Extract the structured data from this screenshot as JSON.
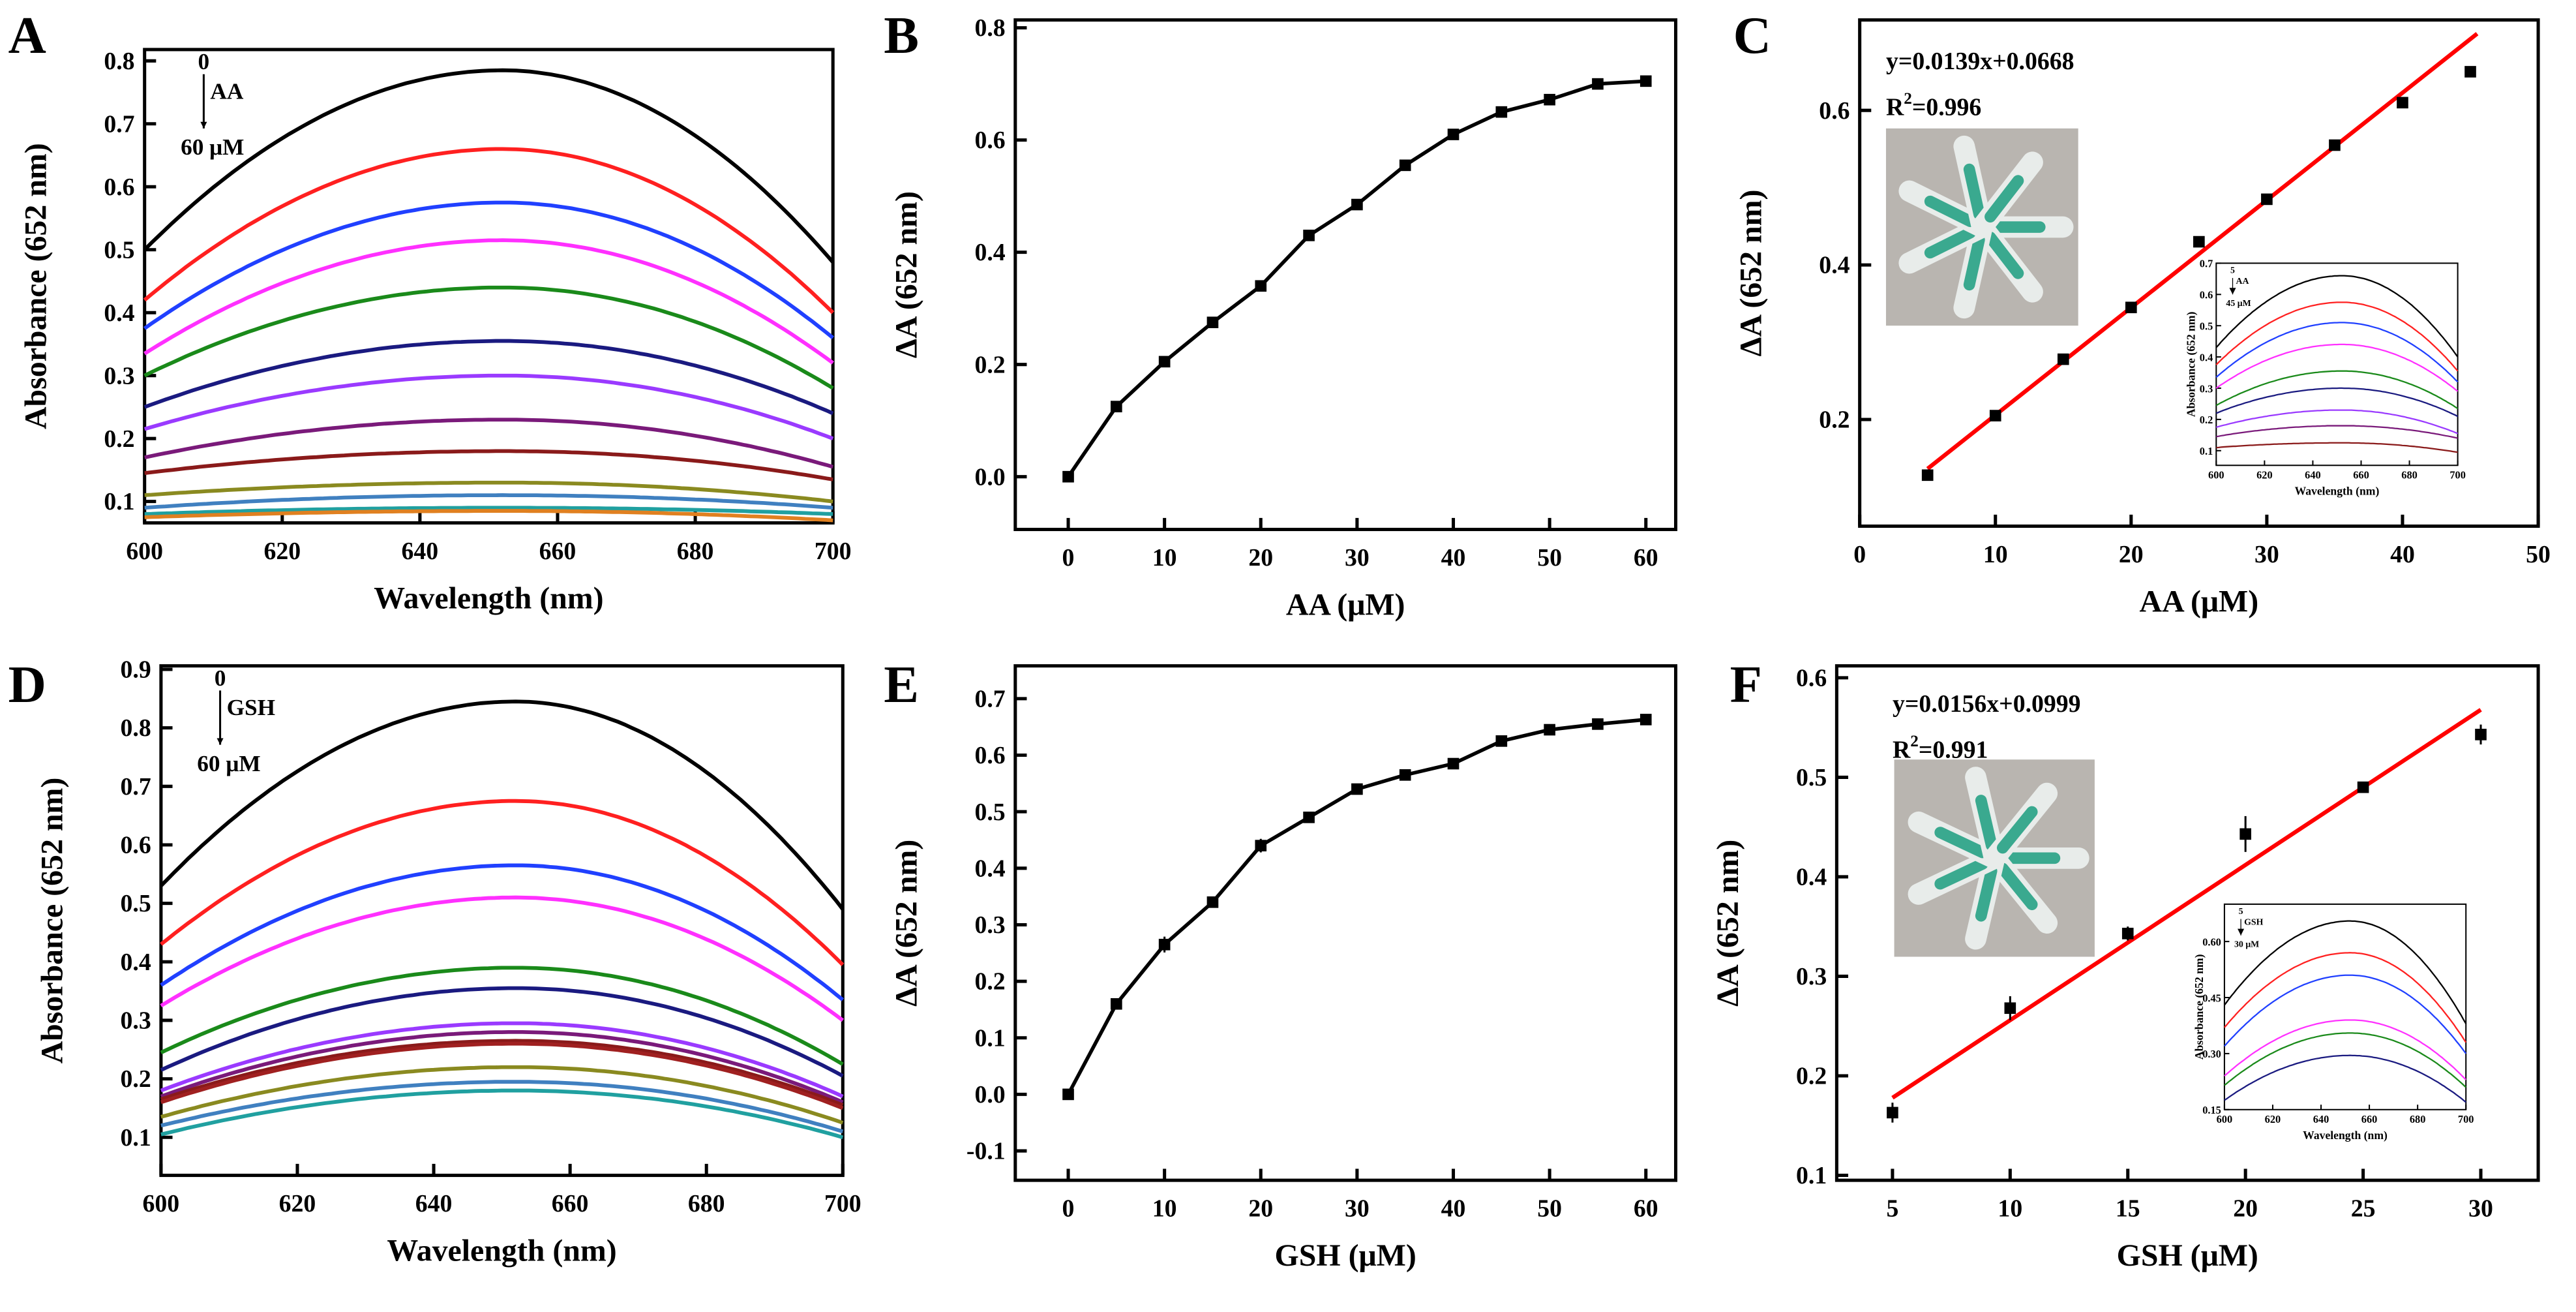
{
  "panels": [
    {
      "id": "A",
      "letter": "A",
      "type": "line",
      "xlabel": "Wavelength (nm)",
      "ylabel": "Absorbance (652 nm)",
      "xlim": [
        600,
        700
      ],
      "ylim": [
        0.066,
        0.818
      ],
      "xticks": [
        "600",
        "620",
        "640",
        "660",
        "680",
        "700"
      ],
      "yticks": [
        "0.1",
        "0.2",
        "0.3",
        "0.4",
        "0.5",
        "0.6",
        "0.7",
        "0.8"
      ],
      "annotation": {
        "top": "0",
        "analyte": "AA",
        "bottom": "60 μM"
      },
      "curve_peak_x": 652,
      "series": [
        {
          "color": "#000000",
          "y600": 0.5,
          "peak": 0.785,
          "y700": 0.48
        },
        {
          "color": "#ff2020",
          "y600": 0.42,
          "peak": 0.66,
          "y700": 0.4
        },
        {
          "color": "#2040ff",
          "y600": 0.375,
          "peak": 0.575,
          "y700": 0.36
        },
        {
          "color": "#ff30ff",
          "y600": 0.335,
          "peak": 0.515,
          "y700": 0.32
        },
        {
          "color": "#1a8a1a",
          "y600": 0.3,
          "peak": 0.44,
          "y700": 0.28
        },
        {
          "color": "#1a1a80",
          "y600": 0.25,
          "peak": 0.355,
          "y700": 0.24
        },
        {
          "color": "#9a3aff",
          "y600": 0.215,
          "peak": 0.3,
          "y700": 0.2
        },
        {
          "color": "#7a1a7a",
          "y600": 0.17,
          "peak": 0.23,
          "y700": 0.155
        },
        {
          "color": "#8a1a1a",
          "y600": 0.145,
          "peak": 0.18,
          "y700": 0.135
        },
        {
          "color": "#8a8a20",
          "y600": 0.11,
          "peak": 0.13,
          "y700": 0.1
        },
        {
          "color": "#4080c0",
          "y600": 0.09,
          "peak": 0.11,
          "y700": 0.09
        },
        {
          "color": "#20a0a0",
          "y600": 0.08,
          "peak": 0.09,
          "y700": 0.08
        },
        {
          "color": "#e08020",
          "y600": 0.075,
          "peak": 0.085,
          "y700": 0.07
        }
      ]
    },
    {
      "id": "B",
      "letter": "B",
      "type": "scatter-line",
      "xlabel": "AA (μM)",
      "ylabel": "ΔA (652 nm)",
      "xlim": [
        -5.5,
        63.1
      ],
      "ylim": [
        -0.094,
        0.814
      ],
      "xticks": [
        "0",
        "10",
        "20",
        "30",
        "40",
        "50",
        "60"
      ],
      "yticks": [
        "0.0",
        "0.2",
        "0.4",
        "0.6",
        "0.8"
      ],
      "x": [
        0,
        5,
        10,
        15,
        20,
        25,
        30,
        35,
        40,
        45,
        50,
        55,
        60
      ],
      "y": [
        0,
        0.125,
        0.205,
        0.275,
        0.34,
        0.43,
        0.485,
        0.555,
        0.61,
        0.65,
        0.672,
        0.7,
        0.705
      ],
      "err": [
        0.005,
        0.005,
        0.006,
        0.005,
        0.005,
        0.007,
        0.006,
        0.005,
        0.005,
        0.005,
        0.006,
        0.006,
        0.005
      ]
    },
    {
      "id": "C",
      "letter": "C",
      "type": "scatter-fit",
      "xlabel": "AA (μM)",
      "ylabel": "ΔA (652 nm)",
      "xlim": [
        0,
        50
      ],
      "ylim": [
        0.062,
        0.717
      ],
      "xticks": [
        "0",
        "10",
        "20",
        "30",
        "40",
        "50"
      ],
      "yticks": [
        "0.2",
        "0.4",
        "0.6"
      ],
      "x": [
        5,
        10,
        15,
        20,
        25,
        30,
        35,
        40,
        45
      ],
      "y": [
        0.128,
        0.205,
        0.278,
        0.345,
        0.43,
        0.485,
        0.555,
        0.61,
        0.65
      ],
      "err": [
        0.004,
        0.004,
        0.004,
        0.004,
        0.005,
        0.004,
        0.004,
        0.004,
        0.005
      ],
      "fit": {
        "slope": 0.0139,
        "intercept": 0.0668,
        "x_range": [
          5,
          45.5
        ],
        "color": "#ff0000"
      },
      "equation": "y=0.0139x+0.0668",
      "r2_prefix": "R",
      "r2_sup": "2",
      "r2_value": "=0.996",
      "inset": {
        "type": "line",
        "xlabel": "Wavelength (nm)",
        "ylabel": "Absorbance (652 nm)",
        "xlim": [
          600,
          700
        ],
        "ylim": [
          0.053,
          0.7
        ],
        "xticks": [
          "600",
          "620",
          "640",
          "660",
          "680",
          "700"
        ],
        "yticks": [
          "0.1",
          "0.2",
          "0.3",
          "0.4",
          "0.5",
          "0.6",
          "0.7"
        ],
        "annotation": {
          "top": "5",
          "analyte": "AA",
          "bottom": "45 μM"
        },
        "series": [
          {
            "color": "#000000",
            "y600": 0.43,
            "peak": 0.66,
            "y700": 0.4
          },
          {
            "color": "#ff2020",
            "y600": 0.375,
            "peak": 0.575,
            "y700": 0.355
          },
          {
            "color": "#2040ff",
            "y600": 0.335,
            "peak": 0.51,
            "y700": 0.32
          },
          {
            "color": "#ff30ff",
            "y600": 0.3,
            "peak": 0.44,
            "y700": 0.29
          },
          {
            "color": "#1a8a1a",
            "y600": 0.245,
            "peak": 0.355,
            "y700": 0.235
          },
          {
            "color": "#1a1a80",
            "y600": 0.22,
            "peak": 0.3,
            "y700": 0.21
          },
          {
            "color": "#9a3aff",
            "y600": 0.175,
            "peak": 0.23,
            "y700": 0.155
          },
          {
            "color": "#7a1a7a",
            "y600": 0.145,
            "peak": 0.18,
            "y700": 0.14
          },
          {
            "color": "#8a1a1a",
            "y600": 0.11,
            "peak": 0.125,
            "y700": 0.095
          }
        ]
      }
    },
    {
      "id": "D",
      "letter": "D",
      "type": "line",
      "xlabel": "Wavelength (nm)",
      "ylabel": "Absorbance (652 nm)",
      "xlim": [
        600,
        700
      ],
      "ylim": [
        0.035,
        0.906
      ],
      "xticks": [
        "600",
        "620",
        "640",
        "660",
        "680",
        "700"
      ],
      "yticks": [
        "0.1",
        "0.2",
        "0.3",
        "0.4",
        "0.5",
        "0.6",
        "0.7",
        "0.8",
        "0.9"
      ],
      "annotation": {
        "top": "0",
        "analyte": "GSH",
        "bottom": "60 μM"
      },
      "series": [
        {
          "color": "#000000",
          "y600": 0.53,
          "peak": 0.845,
          "y700": 0.49
        },
        {
          "color": "#ff2020",
          "y600": 0.43,
          "peak": 0.675,
          "y700": 0.395
        },
        {
          "color": "#2040ff",
          "y600": 0.36,
          "peak": 0.565,
          "y700": 0.335
        },
        {
          "color": "#ff30ff",
          "y600": 0.325,
          "peak": 0.51,
          "y700": 0.3
        },
        {
          "color": "#1a8a1a",
          "y600": 0.245,
          "peak": 0.39,
          "y700": 0.225
        },
        {
          "color": "#1a1a80",
          "y600": 0.215,
          "peak": 0.355,
          "y700": 0.205
        },
        {
          "color": "#9a3aff",
          "y600": 0.18,
          "peak": 0.295,
          "y700": 0.17
        },
        {
          "color": "#7a1a7a",
          "y600": 0.17,
          "peak": 0.28,
          "y700": 0.16
        },
        {
          "color": "#8a1a1a",
          "y600": 0.165,
          "peak": 0.265,
          "y700": 0.155
        },
        {
          "color": "#a02020",
          "y600": 0.16,
          "peak": 0.26,
          "y700": 0.15
        },
        {
          "color": "#8a8a20",
          "y600": 0.135,
          "peak": 0.22,
          "y700": 0.125
        },
        {
          "color": "#4080c0",
          "y600": 0.12,
          "peak": 0.195,
          "y700": 0.11
        },
        {
          "color": "#20a0a0",
          "y600": 0.105,
          "peak": 0.18,
          "y700": 0.1
        }
      ]
    },
    {
      "id": "E",
      "letter": "E",
      "type": "scatter-line",
      "xlabel": "GSH (μM)",
      "ylabel": "ΔA (652 nm)",
      "xlim": [
        -5.5,
        63.1
      ],
      "ylim": [
        -0.152,
        0.758
      ],
      "xticks": [
        "0",
        "10",
        "20",
        "30",
        "40",
        "50",
        "60"
      ],
      "yticks": [
        "-0.1",
        "0.0",
        "0.1",
        "0.2",
        "0.3",
        "0.4",
        "0.5",
        "0.6",
        "0.7"
      ],
      "x": [
        0,
        5,
        10,
        15,
        20,
        25,
        30,
        35,
        40,
        45,
        50,
        55,
        60
      ],
      "y": [
        0,
        0.16,
        0.265,
        0.34,
        0.44,
        0.49,
        0.54,
        0.565,
        0.585,
        0.625,
        0.645,
        0.655,
        0.663
      ],
      "err": [
        0.005,
        0.006,
        0.014,
        0.006,
        0.012,
        0.006,
        0.007,
        0.006,
        0.006,
        0.005,
        0.006,
        0.005,
        0.005
      ]
    },
    {
      "id": "F",
      "letter": "F",
      "type": "scatter-fit",
      "xlabel": "GSH (μM)",
      "ylabel": "ΔA (652 nm)",
      "xlim": [
        2.63,
        32.44
      ],
      "ylim": [
        0.095,
        0.612
      ],
      "xticks": [
        "5",
        "10",
        "15",
        "20",
        "25",
        "30"
      ],
      "yticks": [
        "0.1",
        "0.2",
        "0.3",
        "0.4",
        "0.5",
        "0.6"
      ],
      "x": [
        5,
        10,
        15,
        20,
        25,
        30
      ],
      "y": [
        0.163,
        0.268,
        0.343,
        0.443,
        0.49,
        0.543
      ],
      "err": [
        0.01,
        0.012,
        0.007,
        0.018,
        0.005,
        0.01
      ],
      "fit": {
        "slope": 0.0156,
        "intercept": 0.0999,
        "x_range": [
          5,
          30
        ],
        "color": "#ff0000"
      },
      "equation": "y=0.0156x+0.0999",
      "r2_prefix": "R",
      "r2_sup": "2",
      "r2_value": "=0.991",
      "inset": {
        "type": "line",
        "xlabel": "Wavelength (nm)",
        "ylabel": "Absorbance (652 nm)",
        "xlim": [
          600,
          700
        ],
        "ylim": [
          0.15,
          0.7
        ],
        "xticks": [
          "600",
          "620",
          "640",
          "660",
          "680",
          "700"
        ],
        "yticks": [
          "0.15",
          "0.30",
          "0.45",
          "0.60"
        ],
        "annotation": {
          "top": "5",
          "analyte": "GSH",
          "bottom": "30 μM"
        },
        "series": [
          {
            "color": "#000000",
            "y600": 0.43,
            "peak": 0.655,
            "y700": 0.38
          },
          {
            "color": "#ff2020",
            "y600": 0.37,
            "peak": 0.57,
            "y700": 0.33
          },
          {
            "color": "#2040ff",
            "y600": 0.32,
            "peak": 0.51,
            "y700": 0.3
          },
          {
            "color": "#ff30ff",
            "y600": 0.24,
            "peak": 0.39,
            "y700": 0.23
          },
          {
            "color": "#1a8a1a",
            "y600": 0.215,
            "peak": 0.355,
            "y700": 0.21
          },
          {
            "color": "#1a1a80",
            "y600": 0.175,
            "peak": 0.295,
            "y700": 0.17
          }
        ]
      }
    }
  ],
  "chart_data": [
    {
      "type": "line",
      "title": "A",
      "xlabel": "Wavelength (nm)",
      "ylabel": "Absorbance (652 nm)",
      "note": "AA 0 to 60 μM, 13 spectra"
    },
    {
      "type": "line",
      "title": "B",
      "xlabel": "AA (μM)",
      "ylabel": "ΔA (652 nm)",
      "x": [
        0,
        5,
        10,
        15,
        20,
        25,
        30,
        35,
        40,
        45,
        50,
        55,
        60
      ],
      "y": [
        0,
        0.125,
        0.205,
        0.275,
        0.34,
        0.43,
        0.485,
        0.555,
        0.61,
        0.65,
        0.672,
        0.7,
        0.705
      ]
    },
    {
      "type": "scatter",
      "title": "C",
      "xlabel": "AA (μM)",
      "ylabel": "ΔA (652 nm)",
      "x": [
        5,
        10,
        15,
        20,
        25,
        30,
        35,
        40,
        45
      ],
      "y": [
        0.128,
        0.205,
        0.278,
        0.345,
        0.43,
        0.485,
        0.555,
        0.61,
        0.65
      ],
      "fit": "y=0.0139x+0.0668",
      "r2": 0.996
    },
    {
      "type": "line",
      "title": "D",
      "xlabel": "Wavelength (nm)",
      "ylabel": "Absorbance (652 nm)",
      "note": "GSH 0 to 60 μM, 13 spectra"
    },
    {
      "type": "line",
      "title": "E",
      "xlabel": "GSH (μM)",
      "ylabel": "ΔA (652 nm)",
      "x": [
        0,
        5,
        10,
        15,
        20,
        25,
        30,
        35,
        40,
        45,
        50,
        55,
        60
      ],
      "y": [
        0,
        0.16,
        0.265,
        0.34,
        0.44,
        0.49,
        0.54,
        0.565,
        0.585,
        0.625,
        0.645,
        0.655,
        0.663
      ]
    },
    {
      "type": "scatter",
      "title": "F",
      "xlabel": "GSH (μM)",
      "ylabel": "ΔA (652 nm)",
      "x": [
        5,
        10,
        15,
        20,
        25,
        30
      ],
      "y": [
        0.163,
        0.268,
        0.343,
        0.443,
        0.49,
        0.543
      ],
      "fit": "y=0.0156x+0.0999",
      "r2": 0.991
    }
  ]
}
